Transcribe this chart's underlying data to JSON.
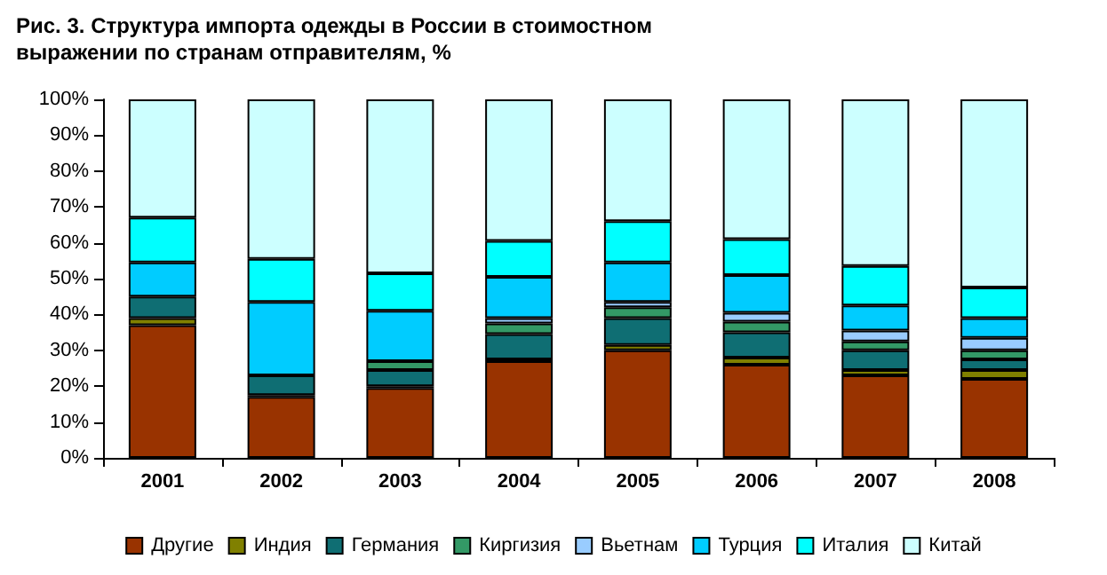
{
  "chart_data": {
    "type": "bar",
    "title": "Рис. 3. Структура импорта одежды в России в стоимостном выражении по странам отправителям, %",
    "categories": [
      "2001",
      "2002",
      "2003",
      "2004",
      "2005",
      "2006",
      "2007",
      "2008"
    ],
    "stacked": true,
    "series": [
      {
        "name": "Другие",
        "color": "#993300",
        "values": [
          37,
          17,
          19.5,
          27,
          30,
          26,
          23,
          22
        ]
      },
      {
        "name": "Индия",
        "color": "#808000",
        "values": [
          2,
          0.5,
          0.5,
          0.5,
          1.5,
          2,
          1.5,
          2.5
        ]
      },
      {
        "name": "Германия",
        "color": "#0f6e73",
        "values": [
          6,
          5.5,
          4.5,
          7,
          7.5,
          7,
          5.5,
          3
        ]
      },
      {
        "name": "Киргизия",
        "color": "#339966",
        "values": [
          null,
          null,
          2.5,
          3,
          3,
          3,
          2.5,
          2.5
        ]
      },
      {
        "name": "Вьетнам",
        "color": "#99ccff",
        "values": [
          null,
          null,
          null,
          1.5,
          1.5,
          2.5,
          3,
          3.5
        ]
      },
      {
        "name": "Турция",
        "color": "#00ccff",
        "values": [
          9.5,
          20.5,
          14,
          11.5,
          11,
          10.5,
          7,
          5.5
        ]
      },
      {
        "name": "Италия",
        "color": "#00ffff",
        "values": [
          12.5,
          12,
          10.5,
          10,
          11.5,
          10,
          11,
          8.5
        ]
      },
      {
        "name": "Китай",
        "color": "#ccffff",
        "values": [
          33,
          44.5,
          48.5,
          39.5,
          34,
          39,
          46.5,
          52.5
        ]
      }
    ],
    "ylim": [
      0,
      100
    ],
    "yticks": [
      {
        "value": 0,
        "label": "0%"
      },
      {
        "value": 10,
        "label": "10%"
      },
      {
        "value": 20,
        "label": "20%"
      },
      {
        "value": 30,
        "label": "30%"
      },
      {
        "value": 40,
        "label": "40%"
      },
      {
        "value": 50,
        "label": "50%"
      },
      {
        "value": 60,
        "label": "60%"
      },
      {
        "value": 70,
        "label": "70%"
      },
      {
        "value": 80,
        "label": "80%"
      },
      {
        "value": 90,
        "label": "90%"
      },
      {
        "value": 100,
        "label": "100%"
      }
    ],
    "grid": false,
    "legend": "bottom"
  }
}
